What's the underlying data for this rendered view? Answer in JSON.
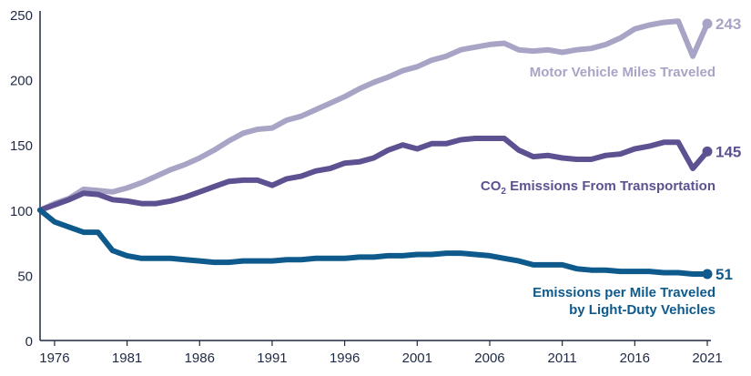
{
  "chart_data": {
    "type": "line",
    "title": "",
    "xlabel": "",
    "ylabel": "",
    "xlim": [
      1975,
      2021
    ],
    "ylim": [
      0,
      250
    ],
    "yticks": [
      0,
      50,
      100,
      150,
      200,
      250
    ],
    "xticks": [
      1976,
      1981,
      1986,
      1991,
      1996,
      2001,
      2006,
      2011,
      2016,
      2021
    ],
    "grid": false,
    "x": [
      1975,
      1976,
      1977,
      1978,
      1979,
      1980,
      1981,
      1982,
      1983,
      1984,
      1985,
      1986,
      1987,
      1988,
      1989,
      1990,
      1991,
      1992,
      1993,
      1994,
      1995,
      1996,
      1997,
      1998,
      1999,
      2000,
      2001,
      2002,
      2003,
      2004,
      2005,
      2006,
      2007,
      2008,
      2009,
      2010,
      2011,
      2012,
      2013,
      2014,
      2015,
      2016,
      2017,
      2018,
      2019,
      2020,
      2021
    ],
    "series": [
      {
        "name": "Motor Vehicle Miles Traveled",
        "color": "#a7a4c6",
        "end_label": "243",
        "values": [
          100,
          105,
          109,
          116,
          115,
          114,
          117,
          121,
          126,
          131,
          135,
          140,
          146,
          153,
          159,
          162,
          163,
          169,
          172,
          177,
          182,
          187,
          193,
          198,
          202,
          207,
          210,
          215,
          218,
          223,
          225,
          227,
          228,
          223,
          222,
          223,
          221,
          223,
          224,
          227,
          232,
          239,
          242,
          244,
          245,
          218,
          243
        ]
      },
      {
        "name": "CO2 Emissions From Transportation",
        "color": "#5d5192",
        "end_label": "145",
        "values": [
          100,
          104,
          108,
          113,
          112,
          108,
          107,
          105,
          105,
          107,
          110,
          114,
          118,
          122,
          123,
          123,
          119,
          124,
          126,
          130,
          132,
          136,
          137,
          140,
          146,
          150,
          147,
          151,
          151,
          154,
          155,
          155,
          155,
          146,
          141,
          142,
          140,
          139,
          139,
          142,
          143,
          147,
          149,
          152,
          152,
          132,
          145
        ]
      },
      {
        "name": "Emissions per Mile Traveled by Light-Duty Vehicles",
        "color": "#0e5a8c",
        "end_label": "51",
        "values": [
          100,
          91,
          87,
          83,
          83,
          69,
          65,
          63,
          63,
          63,
          62,
          61,
          60,
          60,
          61,
          61,
          61,
          62,
          62,
          63,
          63,
          63,
          64,
          64,
          65,
          65,
          66,
          66,
          67,
          67,
          66,
          65,
          63,
          61,
          58,
          58,
          58,
          55,
          54,
          54,
          53,
          53,
          53,
          52,
          52,
          51,
          51
        ]
      }
    ],
    "labels": {
      "vmt": "Motor Vehicle Miles Traveled",
      "co2_pre": "CO",
      "co2_sub": "2",
      "co2_post": " Emissions From Transportation",
      "emissions_line1": "Emissions per Mile Traveled",
      "emissions_line2": "by Light-Duty Vehicles"
    }
  }
}
